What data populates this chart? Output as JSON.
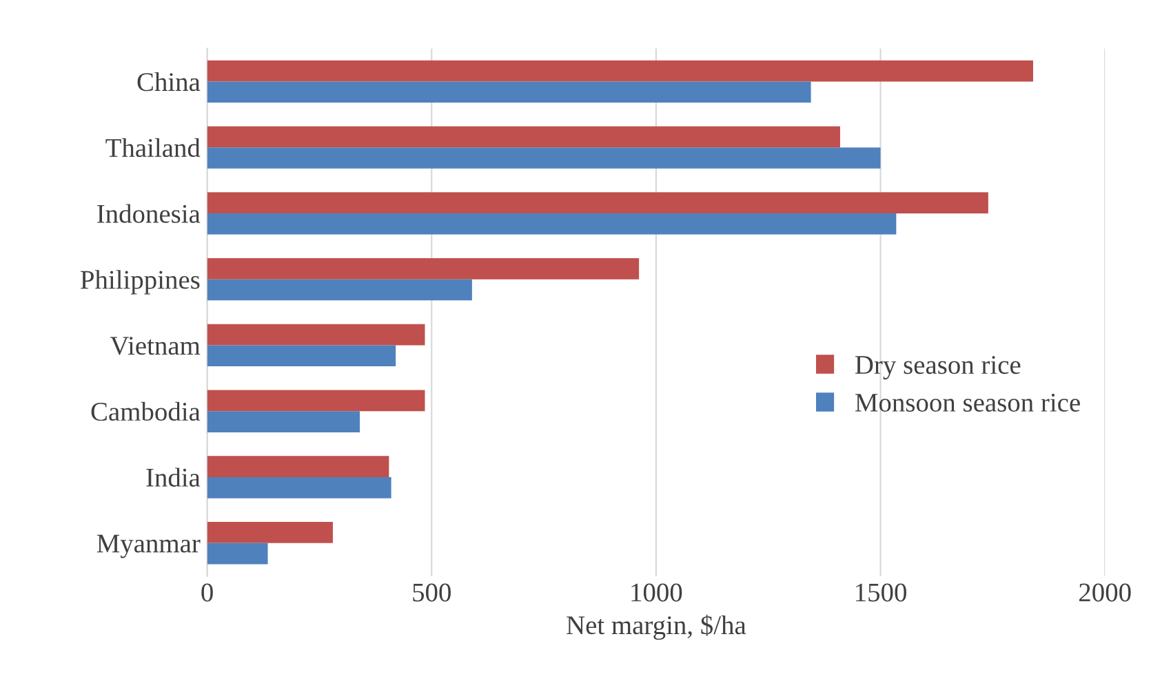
{
  "chart_data": {
    "type": "bar",
    "orientation": "horizontal",
    "xlabel": "Net margin, $/ha",
    "categories": [
      "China",
      "Thailand",
      "Indonesia",
      "Philippines",
      "Vietnam",
      "Cambodia",
      "India",
      "Myanmar"
    ],
    "series": [
      {
        "name": "Dry season rice",
        "color": "#c0504d",
        "values": [
          1840,
          1410,
          1740,
          962,
          485,
          485,
          405,
          280
        ]
      },
      {
        "name": "Monsoon season rice",
        "color": "#4f81bd",
        "values": [
          1345,
          1500,
          1535,
          590,
          420,
          340,
          410,
          135
        ]
      }
    ],
    "xlim": [
      0,
      2000
    ],
    "xticks": [
      0,
      500,
      1000,
      1500,
      2000
    ],
    "grid": "x",
    "legend": "right"
  }
}
